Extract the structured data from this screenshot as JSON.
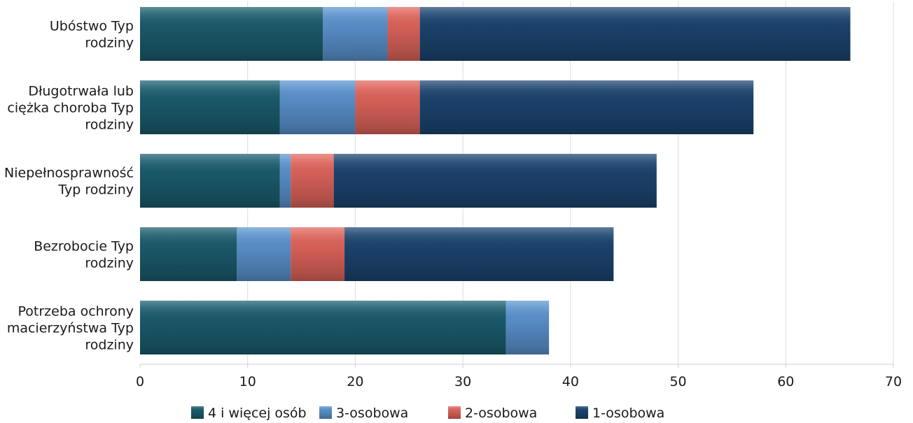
{
  "chart_data": {
    "type": "bar",
    "orientation": "horizontal",
    "stacked": true,
    "categories": [
      "Ubóstwo Typ rodziny",
      "Długotrwała lub ciężka choroba Typ rodziny",
      "Niepełnosprawność Typ rodziny",
      "Bezrobocie Typ rodziny",
      "Potrzeba ochrony macierzyństwa Typ rodziny"
    ],
    "series": [
      {
        "name": "4  i więcej osób",
        "color": "#1b5d6e",
        "values": [
          17,
          13,
          13,
          9,
          34
        ]
      },
      {
        "name": "3-osobowa",
        "color": "#5b93cf",
        "values": [
          6,
          7,
          1,
          5,
          4
        ]
      },
      {
        "name": "2-osobowa",
        "color": "#e0655c",
        "values": [
          3,
          6,
          4,
          5,
          0
        ]
      },
      {
        "name": "1-osobowa",
        "color": "#1c4570",
        "values": [
          40,
          31,
          30,
          25,
          0
        ]
      }
    ],
    "xlim": [
      0,
      70
    ],
    "xticks": [
      0,
      10,
      20,
      30,
      40,
      50,
      60,
      70
    ],
    "grid": true,
    "legend": "bottom"
  }
}
